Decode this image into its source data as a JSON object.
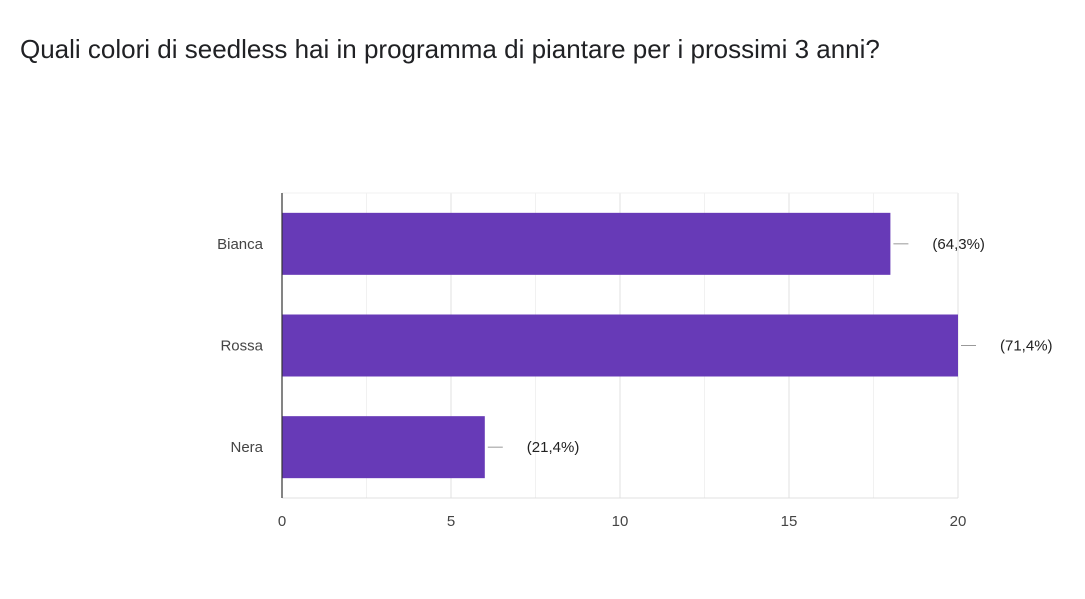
{
  "title": "Quali colori di seedless hai in programma di piantare per i prossimi 3 anni?",
  "chart_data": {
    "type": "bar",
    "orientation": "horizontal",
    "title": "Quali colori di seedless hai in programma di piantare per i prossimi 3 anni?",
    "categories": [
      "Bianca",
      "Rossa",
      "Nera"
    ],
    "values": [
      18,
      20,
      6
    ],
    "data_labels": [
      "(64,3%)",
      "(71,4%)",
      "(21,4%)"
    ],
    "xlim": [
      0,
      20
    ],
    "xticks": [
      "0",
      "5",
      "10",
      "15",
      "20"
    ],
    "grid": true,
    "bar_color": "#673ab7"
  }
}
